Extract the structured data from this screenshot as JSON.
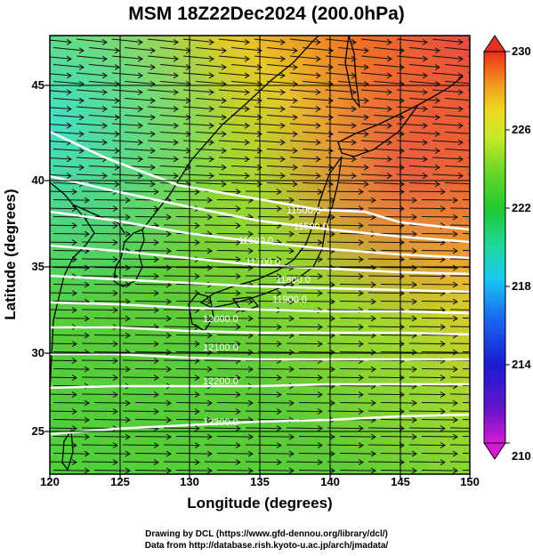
{
  "title": "MSM 18Z22Dec2024 (200.0hPa)",
  "axes": {
    "xlabel": "Longitude (degrees)",
    "ylabel": "Latitude  (degrees)",
    "x_ticks": [
      "120",
      "125",
      "130",
      "135",
      "140",
      "145",
      "150"
    ],
    "y_ticks": [
      "45",
      "40",
      "35",
      "30",
      "25"
    ],
    "xlim": [
      120,
      150
    ],
    "ylim": [
      22.5,
      47.5
    ]
  },
  "colorbar": {
    "ticks": [
      "230",
      "226",
      "222",
      "218",
      "214",
      "210"
    ],
    "range": [
      210,
      230
    ],
    "colors": [
      "#d81ad8",
      "#6a16c8",
      "#1a1ad0",
      "#1a6af0",
      "#18c8f0",
      "#20d8a0",
      "#20c830",
      "#70d828",
      "#c8e828",
      "#f0d820",
      "#f0a020",
      "#f06018",
      "#e83020"
    ]
  },
  "contour_labels": [
    "11500.0",
    "11500.0",
    "11600.0",
    "11700.0",
    "11800.0",
    "11900.0",
    "12000.0",
    "12100.0",
    "12200.0",
    "12300.0",
    "12400.0"
  ],
  "credits": {
    "line1": "Drawing by DCL (https://www.gfd-dennou.org/library/dcl/)",
    "line2": "Data from http://database.rish.kyoto-u.ac.jp/arch/jmadata/"
  },
  "chart_data": {
    "type": "heatmap",
    "title": "MSM 18Z22Dec2024 (200.0hPa)",
    "xlabel": "Longitude (degrees)",
    "ylabel": "Latitude  (degrees)",
    "xlim": [
      120,
      150
    ],
    "ylim": [
      22.5,
      47.5
    ],
    "color_range": [
      210,
      230
    ],
    "contour_levels": [
      11500,
      11600,
      11700,
      11800,
      11900,
      12000,
      12100,
      12200,
      12300,
      12400
    ],
    "wind_direction": "westerly",
    "grid": true
  }
}
